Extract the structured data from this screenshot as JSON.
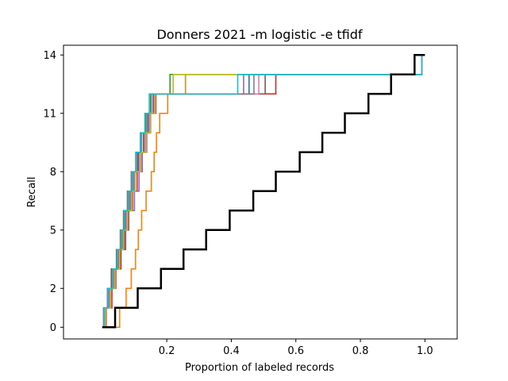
{
  "chart_data": {
    "type": "line",
    "title": "Donners 2021 -m logistic -e tfidf",
    "xlabel": "Proportion of labeled records",
    "ylabel": "Recall",
    "xlim": [
      -0.12,
      1.1
    ],
    "ylim": [
      -0.6,
      14.5
    ],
    "x_ticks": [
      0.2,
      0.4,
      0.6,
      0.8,
      1.0
    ],
    "x_tick_labels": [
      "0.2",
      "0.4",
      "0.6",
      "0.8",
      "1.0"
    ],
    "y_ticks": [
      0,
      2,
      5,
      8,
      11,
      14
    ],
    "y_tick_labels": [
      "0",
      "2",
      "5",
      "8",
      "11",
      "14"
    ],
    "grid": false,
    "series": [
      {
        "color": "#1f77b4",
        "x": [
          0.0,
          0.008,
          0.022,
          0.038,
          0.052,
          0.068,
          0.076,
          0.088,
          0.098,
          0.112,
          0.128,
          0.142,
          0.158,
          0.455,
          0.99
        ],
        "y": [
          0,
          1,
          2,
          3,
          4,
          5,
          6,
          7,
          8,
          9,
          10,
          11,
          12,
          13,
          14
        ]
      },
      {
        "color": "#ff7f0e",
        "x": [
          0.0,
          0.054,
          0.074,
          0.09,
          0.103,
          0.112,
          0.122,
          0.136,
          0.152,
          0.161,
          0.168,
          0.178,
          0.203,
          0.258,
          0.99
        ],
        "y": [
          0,
          1,
          2,
          3,
          4,
          5,
          6,
          7,
          8,
          9,
          10,
          11,
          12,
          13,
          14
        ]
      },
      {
        "color": "#2ca02c",
        "x": [
          0.0,
          0.006,
          0.018,
          0.03,
          0.046,
          0.06,
          0.07,
          0.082,
          0.092,
          0.104,
          0.118,
          0.134,
          0.15,
          0.21,
          0.99
        ],
        "y": [
          0,
          1,
          2,
          3,
          4,
          5,
          6,
          7,
          8,
          9,
          10,
          11,
          12,
          13,
          14
        ]
      },
      {
        "color": "#d62728",
        "x": [
          0.0,
          0.012,
          0.03,
          0.042,
          0.058,
          0.072,
          0.082,
          0.094,
          0.108,
          0.12,
          0.134,
          0.15,
          0.166,
          0.538,
          0.99
        ],
        "y": [
          0,
          1,
          2,
          3,
          4,
          5,
          6,
          7,
          8,
          9,
          10,
          11,
          12,
          13,
          14
        ]
      },
      {
        "color": "#9467bd",
        "x": [
          0.0,
          0.004,
          0.016,
          0.034,
          0.05,
          0.064,
          0.08,
          0.1,
          0.114,
          0.124,
          0.138,
          0.148,
          0.158,
          0.438,
          0.99
        ],
        "y": [
          0,
          1,
          2,
          3,
          4,
          5,
          6,
          7,
          8,
          9,
          10,
          11,
          12,
          13,
          14
        ]
      },
      {
        "color": "#8c564b",
        "x": [
          0.0,
          0.01,
          0.02,
          0.028,
          0.044,
          0.056,
          0.066,
          0.078,
          0.09,
          0.11,
          0.13,
          0.145,
          0.16,
          0.505,
          0.99
        ],
        "y": [
          0,
          1,
          2,
          3,
          4,
          5,
          6,
          7,
          8,
          9,
          10,
          11,
          12,
          13,
          14
        ]
      },
      {
        "color": "#e377c2",
        "x": [
          0.0,
          0.008,
          0.024,
          0.036,
          0.048,
          0.062,
          0.074,
          0.086,
          0.096,
          0.116,
          0.132,
          0.146,
          0.162,
          0.485,
          0.99
        ],
        "y": [
          0,
          1,
          2,
          3,
          4,
          5,
          6,
          7,
          8,
          9,
          10,
          11,
          12,
          13,
          14
        ]
      },
      {
        "color": "#7f7f7f",
        "x": [
          0.0,
          0.006,
          0.02,
          0.034,
          0.05,
          0.062,
          0.072,
          0.084,
          0.094,
          0.106,
          0.122,
          0.138,
          0.152,
          0.47,
          0.99
        ],
        "y": [
          0,
          1,
          2,
          3,
          4,
          5,
          6,
          7,
          8,
          9,
          10,
          11,
          12,
          13,
          14
        ]
      },
      {
        "color": "#bcbd22",
        "x": [
          0.0,
          0.01,
          0.026,
          0.04,
          0.054,
          0.066,
          0.078,
          0.092,
          0.102,
          0.12,
          0.136,
          0.15,
          0.164,
          0.22,
          0.99
        ],
        "y": [
          0,
          1,
          2,
          3,
          4,
          5,
          6,
          7,
          8,
          9,
          10,
          11,
          12,
          13,
          14
        ]
      },
      {
        "color": "#17becf",
        "x": [
          0.0,
          0.006,
          0.018,
          0.032,
          0.046,
          0.058,
          0.068,
          0.08,
          0.092,
          0.104,
          0.118,
          0.132,
          0.146,
          0.42,
          0.99
        ],
        "y": [
          0,
          1,
          2,
          3,
          4,
          5,
          6,
          7,
          8,
          9,
          10,
          11,
          12,
          13,
          14
        ]
      }
    ],
    "baseline": {
      "color": "#000000",
      "x": [
        0.0,
        0.04,
        0.11,
        0.182,
        0.252,
        0.322,
        0.395,
        0.468,
        0.538,
        0.612,
        0.682,
        0.752,
        0.825,
        0.895,
        0.968,
        1.0
      ],
      "y": [
        0,
        1,
        2,
        3,
        4,
        5,
        6,
        7,
        8,
        9,
        10,
        11,
        12,
        13,
        14,
        14
      ]
    }
  }
}
